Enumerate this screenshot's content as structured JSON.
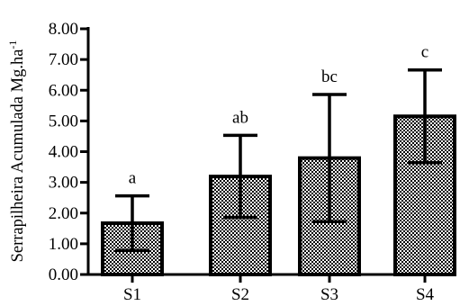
{
  "chart_data": {
    "type": "bar",
    "ylabel": "Serrapilheira Acumulada Mg.ha",
    "ylabel_sup": "-1",
    "xlabel": "",
    "ylim": [
      0,
      8
    ],
    "yticks": [
      0,
      1,
      2,
      3,
      4,
      5,
      6,
      7,
      8
    ],
    "ytick_labels": [
      "0.00",
      "1.00",
      "2.00",
      "3.00",
      "4.00",
      "5.00",
      "6.00",
      "7.00",
      "8.00"
    ],
    "categories": [
      "S1",
      "S2",
      "S3",
      "S4"
    ],
    "values": [
      1.67,
      3.19,
      3.79,
      5.15
    ],
    "error_lower": [
      0.78,
      1.86,
      1.72,
      3.64
    ],
    "error_upper": [
      2.56,
      4.53,
      5.86,
      6.66
    ],
    "significance_labels": [
      "a",
      "ab",
      "bc",
      "c"
    ],
    "bar_fill": "checkered",
    "grid": false,
    "legend": "none",
    "colors": {
      "bar_stroke": "#000000",
      "pattern_dark": "#000000",
      "pattern_light": "#ffffff"
    }
  }
}
